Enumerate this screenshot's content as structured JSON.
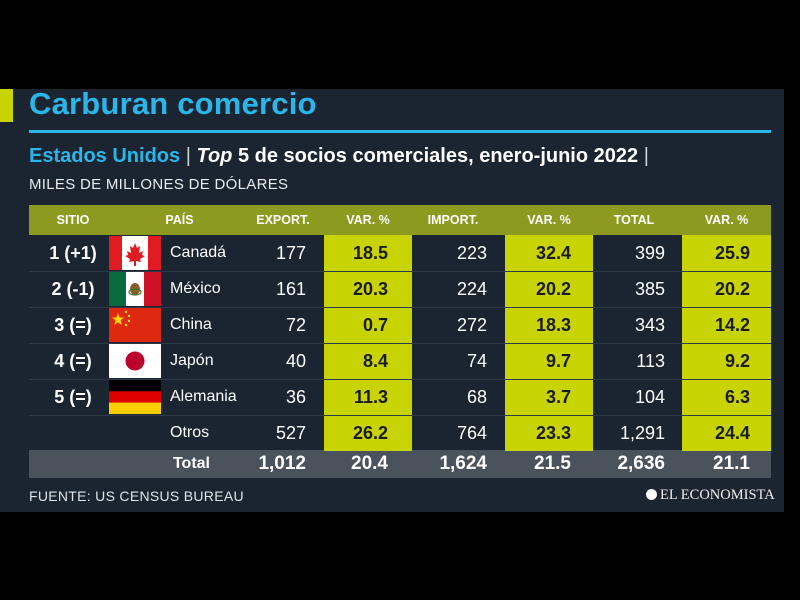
{
  "header": {
    "title": "Carburan comercio",
    "subtitle_highlight": "Estados Unidos",
    "subtitle_separator": "|",
    "subtitle_italic": "Top",
    "subtitle_rest": "5 de socios comerciales, enero-junio 2022",
    "subtitle_trailing": "|",
    "units": "MILES DE MILLONES DE DÓLARES"
  },
  "chart_data": {
    "type": "table",
    "columns": [
      "SITIO",
      "PAÍS",
      "EXPORT.",
      "VAR. %",
      "IMPORT.",
      "VAR. %",
      "TOTAL",
      "VAR. %"
    ],
    "rows": [
      {
        "site": "1 (+1)",
        "country": "Canadá",
        "flag": "canada-flag",
        "export": "177",
        "export_var": "18.5",
        "import": "223",
        "import_var": "32.4",
        "total": "399",
        "total_var": "25.9"
      },
      {
        "site": "2 (-1)",
        "country": "México",
        "flag": "mexico-flag",
        "export": "161",
        "export_var": "20.3",
        "import": "224",
        "import_var": "20.2",
        "total": "385",
        "total_var": "20.2"
      },
      {
        "site": "3 (=)",
        "country": "China",
        "flag": "china-flag",
        "export": "72",
        "export_var": "0.7",
        "import": "272",
        "import_var": "18.3",
        "total": "343",
        "total_var": "14.2"
      },
      {
        "site": "4 (=)",
        "country": "Japón",
        "flag": "japan-flag",
        "export": "40",
        "export_var": "8.4",
        "import": "74",
        "import_var": "9.7",
        "total": "113",
        "total_var": "9.2"
      },
      {
        "site": "5 (=)",
        "country": "Alemania",
        "flag": "germany-flag",
        "export": "36",
        "export_var": "11.3",
        "import": "68",
        "import_var": "3.7",
        "total": "104",
        "total_var": "6.3"
      },
      {
        "site": "",
        "country": "Otros",
        "flag": "",
        "export": "527",
        "export_var": "26.2",
        "import": "764",
        "import_var": "23.3",
        "total": "1,291",
        "total_var": "24.4"
      }
    ],
    "totals": {
      "label": "Total",
      "export": "1,012",
      "export_var": "20.4",
      "import": "1,624",
      "import_var": "21.5",
      "total": "2,636",
      "total_var": "21.1"
    }
  },
  "footer": {
    "source": "FUENTE: US CENSUS BUREAU",
    "brand": "EL ECONOMISTA"
  },
  "colors": {
    "accent_blue": "#29b6e8",
    "accent_lime": "#c8d400",
    "header_olive": "#8c9b20",
    "panel_bg": "#1b2431",
    "total_bar": "#4a525c"
  }
}
